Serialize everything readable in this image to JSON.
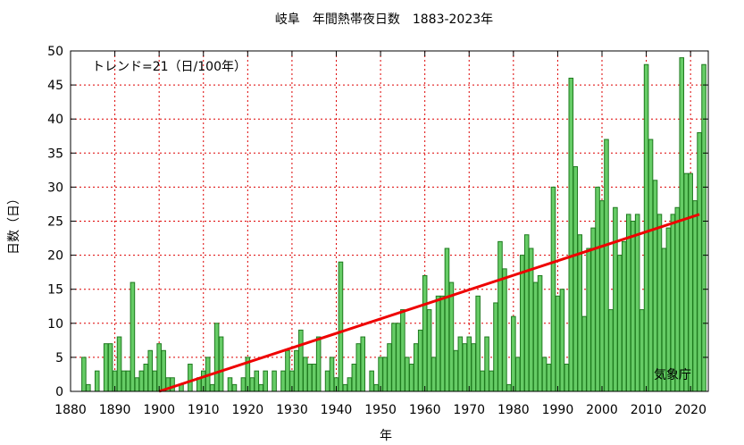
{
  "chart_data": {
    "type": "bar",
    "title": "岐阜　年間熱帯夜日数　1883-2023年",
    "xlabel": "年",
    "ylabel": "日数（日）",
    "trend_label": "トレンド=21（日/100年）",
    "source": "気象庁",
    "xlim": [
      1880,
      2024
    ],
    "ylim": [
      0,
      50
    ],
    "x_ticks": [
      1880,
      1890,
      1900,
      1910,
      1920,
      1930,
      1940,
      1950,
      1960,
      1970,
      1980,
      1990,
      2000,
      2010,
      2020
    ],
    "y_ticks": [
      0,
      5,
      10,
      15,
      20,
      25,
      30,
      35,
      40,
      45,
      50
    ],
    "grid": true,
    "colors": {
      "bar_fill": "#66cc66",
      "bar_edge": "#1f7a1f",
      "trend": "#ee0000",
      "grid": "#dd0000"
    },
    "trend": {
      "x": [
        1900,
        2022
      ],
      "y": [
        0,
        26
      ]
    },
    "x": [
      1883,
      1884,
      1885,
      1886,
      1887,
      1888,
      1889,
      1890,
      1891,
      1892,
      1893,
      1894,
      1895,
      1896,
      1897,
      1898,
      1899,
      1900,
      1901,
      1902,
      1903,
      1904,
      1905,
      1906,
      1907,
      1908,
      1909,
      1910,
      1911,
      1912,
      1913,
      1914,
      1915,
      1916,
      1917,
      1918,
      1919,
      1920,
      1921,
      1922,
      1923,
      1924,
      1925,
      1926,
      1927,
      1928,
      1929,
      1930,
      1931,
      1932,
      1933,
      1934,
      1935,
      1936,
      1937,
      1938,
      1939,
      1940,
      1941,
      1942,
      1943,
      1944,
      1945,
      1946,
      1947,
      1948,
      1949,
      1950,
      1951,
      1952,
      1953,
      1954,
      1955,
      1956,
      1957,
      1958,
      1959,
      1960,
      1961,
      1962,
      1963,
      1964,
      1965,
      1966,
      1967,
      1968,
      1969,
      1970,
      1971,
      1972,
      1973,
      1974,
      1975,
      1976,
      1977,
      1978,
      1979,
      1980,
      1981,
      1982,
      1983,
      1984,
      1985,
      1986,
      1987,
      1988,
      1989,
      1990,
      1991,
      1992,
      1993,
      1994,
      1995,
      1996,
      1997,
      1998,
      1999,
      2000,
      2001,
      2002,
      2003,
      2004,
      2005,
      2006,
      2007,
      2008,
      2009,
      2010,
      2011,
      2012,
      2013,
      2014,
      2015,
      2016,
      2017,
      2018,
      2019,
      2020,
      2021,
      2022,
      2023
    ],
    "values": [
      5,
      1,
      0,
      3,
      0,
      7,
      7,
      3,
      8,
      3,
      3,
      16,
      2,
      3,
      4,
      6,
      3,
      7,
      6,
      2,
      2,
      0,
      1,
      0,
      4,
      0,
      2,
      3,
      5,
      1,
      10,
      8,
      0,
      2,
      1,
      0,
      2,
      5,
      2,
      3,
      1,
      3,
      0,
      3,
      0,
      3,
      6,
      3,
      6,
      9,
      5,
      4,
      4,
      8,
      0,
      3,
      5,
      2,
      19,
      1,
      2,
      4,
      7,
      8,
      0,
      3,
      1,
      5,
      5,
      7,
      10,
      10,
      12,
      5,
      4,
      7,
      9,
      17,
      12,
      5,
      14,
      14,
      21,
      16,
      6,
      8,
      7,
      8,
      7,
      14,
      3,
      8,
      3,
      13,
      22,
      18,
      1,
      11,
      5,
      20,
      23,
      21,
      16,
      17,
      5,
      4,
      30,
      14,
      15,
      4,
      46,
      33,
      23,
      11,
      21,
      24,
      30,
      28,
      37,
      12,
      27,
      20,
      22,
      26,
      25,
      26,
      12,
      48,
      37,
      31,
      26,
      21,
      24,
      26,
      27,
      49,
      32,
      32,
      28,
      38,
      48
    ]
  }
}
